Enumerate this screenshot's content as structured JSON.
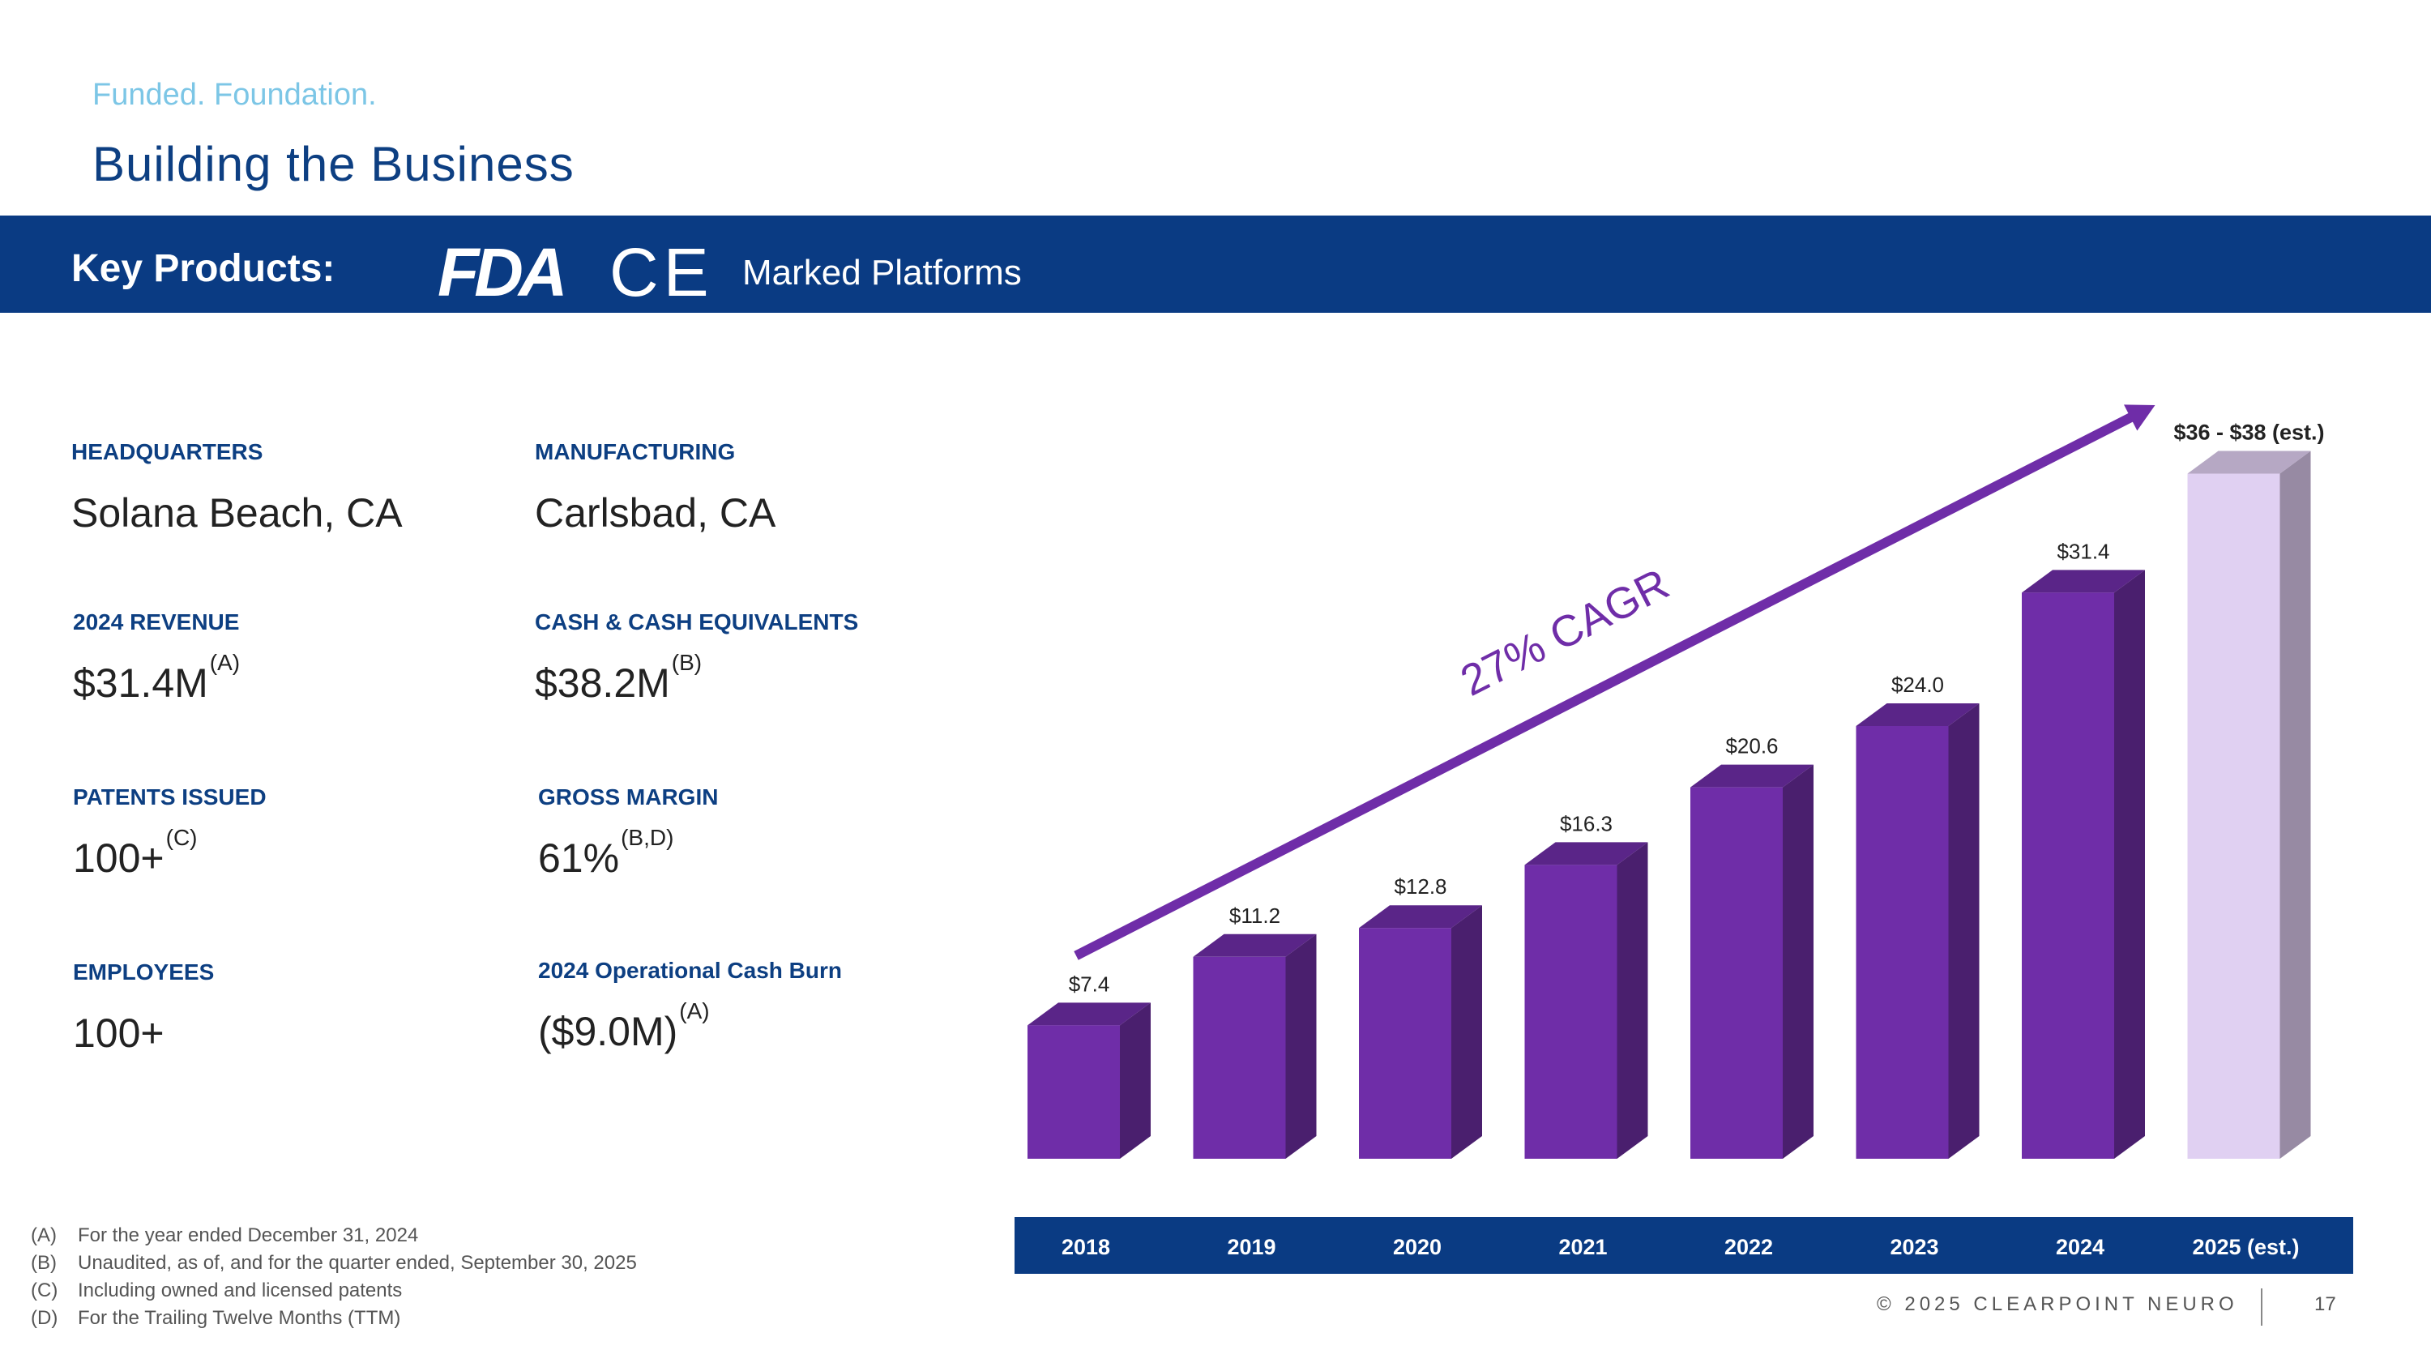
{
  "header": {
    "eyebrow": "Funded. Foundation.",
    "title": "Building the Business"
  },
  "banner": {
    "key_label": "Key Products:",
    "fda_logo": "FDA",
    "ce_logo": "CE",
    "platforms": "Marked Platforms"
  },
  "stats": {
    "headquarters": {
      "label": "HEADQUARTERS",
      "value": "Solana Beach, CA"
    },
    "manufacturing": {
      "label": "MANUFACTURING",
      "value": "Carlsbad, CA"
    },
    "revenue": {
      "label": "2024 REVENUE",
      "value": "$31.4M",
      "note": "(A)"
    },
    "cash": {
      "label": "CASH & CASH EQUIVALENTS",
      "value": "$38.2M",
      "note": "(B)"
    },
    "patents": {
      "label": "PATENTS ISSUED",
      "value": "100+",
      "note": "(C)"
    },
    "margin": {
      "label": "GROSS MARGIN",
      "value": "61%",
      "note": "(B,D)"
    },
    "employees": {
      "label": "EMPLOYEES",
      "value": "100+"
    },
    "burn": {
      "label": "2024 Operational Cash Burn",
      "value": "($9.0M)",
      "note": "(A)"
    }
  },
  "footnotes": [
    {
      "key": "(A)",
      "text": "For the year ended December 31, 2024"
    },
    {
      "key": "(B)",
      "text": "Unaudited, as of, and for the quarter ended, September 30, 2025"
    },
    {
      "key": "(C)",
      "text": "Including owned and licensed patents"
    },
    {
      "key": "(D)",
      "text": "For the Trailing Twelve Months (TTM)"
    }
  ],
  "footer": {
    "copyright": "© 2025 CLEARPOINT NEURO",
    "page": "17"
  },
  "colors": {
    "navy": "#0a3b83",
    "bar_front": "#6f2da8",
    "bar_side": "#4a1f6e",
    "bar_top": "#5a2588",
    "est_front": "#e0d0f2",
    "est_side": "#978aa3",
    "est_top": "#b6a8c4",
    "arrow": "#6f2da8"
  },
  "chart_data": {
    "type": "bar",
    "categories": [
      "2018",
      "2019",
      "2020",
      "2021",
      "2022",
      "2023",
      "2024",
      "2025 (est.)"
    ],
    "values": [
      7.4,
      11.2,
      12.8,
      16.3,
      20.6,
      24.0,
      31.4,
      38
    ],
    "data_labels": [
      "$7.4",
      "$11.2",
      "$12.8",
      "$16.3",
      "$20.6",
      "$24.0",
      "$31.4",
      "$36 - $38 (est.)"
    ],
    "estimate_range": [
      36,
      38
    ],
    "trend_label": "27% CAGR",
    "ylim": [
      0,
      40
    ],
    "grid": false
  }
}
